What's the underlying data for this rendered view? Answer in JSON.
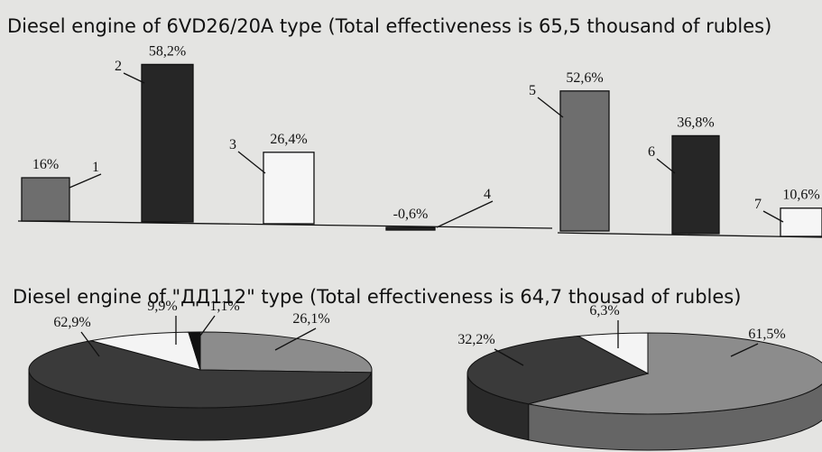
{
  "chart_data": [
    {
      "type": "bar",
      "title": "Diesel engine of 6VD26/20A type (Total effectiveness is 65,5 thousand of rubles)",
      "categories": [
        "1",
        "2",
        "3",
        "4"
      ],
      "values": [
        16,
        58.2,
        26.4,
        -0.6
      ],
      "value_labels": [
        "16%",
        "58,2%",
        "26,4%",
        "-0,6%"
      ],
      "colors": [
        "#6e6e6e",
        "#262626",
        "#f6f6f6",
        "#262626"
      ]
    },
    {
      "type": "bar",
      "categories": [
        "5",
        "6",
        "7"
      ],
      "values": [
        52.6,
        36.8,
        10.6
      ],
      "value_labels": [
        "52,6%",
        "36,8%",
        "10,6%"
      ],
      "colors": [
        "#6e6e6e",
        "#262626",
        "#f6f6f6"
      ]
    },
    {
      "type": "pie",
      "title": "Diesel engine of \"ДД112\" type (Total effectiveness is 64,7 thousad of rubles)",
      "values": [
        26.1,
        62.9,
        9.9,
        1.1
      ],
      "value_labels": [
        "26,1%",
        "62,9%",
        "9,9%",
        "1,1%"
      ],
      "colors": [
        "#8c8c8c",
        "#3a3a3a",
        "#f4f4f4",
        "#111111"
      ]
    },
    {
      "type": "pie",
      "values": [
        61.5,
        32.2,
        6.3
      ],
      "value_labels": [
        "61,5%",
        "32,2%",
        "6,3%"
      ],
      "colors": [
        "#8c8c8c",
        "#3a3a3a",
        "#f4f4f4"
      ]
    }
  ]
}
